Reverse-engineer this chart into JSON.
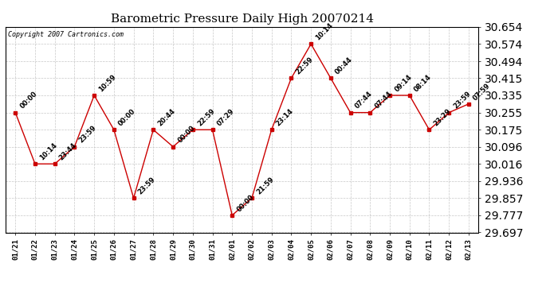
{
  "title": "Barometric Pressure Daily High 20070214",
  "copyright": "Copyright 2007 Cartronics.com",
  "x_labels": [
    "01/21",
    "01/22",
    "01/23",
    "01/24",
    "01/25",
    "01/26",
    "01/27",
    "01/28",
    "01/29",
    "01/30",
    "01/31",
    "02/01",
    "02/02",
    "02/03",
    "02/04",
    "02/05",
    "02/06",
    "02/07",
    "02/08",
    "02/09",
    "02/10",
    "02/11",
    "02/12",
    "02/13"
  ],
  "y_values": [
    30.255,
    30.016,
    30.016,
    30.096,
    30.335,
    30.175,
    29.857,
    30.175,
    30.096,
    30.175,
    30.175,
    29.777,
    29.857,
    30.175,
    30.415,
    30.574,
    30.415,
    30.255,
    30.255,
    30.335,
    30.335,
    30.175,
    30.255,
    30.295
  ],
  "time_labels": [
    "00:00",
    "10:14",
    "23:44",
    "23:59",
    "10:59",
    "00:00",
    "23:59",
    "20:44",
    "00:00",
    "22:59",
    "07:29",
    "00:00",
    "21:59",
    "23:14",
    "22:59",
    "10:14",
    "00:44",
    "07:44",
    "07:44",
    "09:14",
    "08:14",
    "23:29",
    "23:59",
    "07:59"
  ],
  "y_min": 29.697,
  "y_max": 30.654,
  "y_ticks": [
    29.697,
    29.777,
    29.857,
    29.936,
    30.016,
    30.096,
    30.175,
    30.255,
    30.335,
    30.415,
    30.494,
    30.574,
    30.654
  ],
  "line_color": "#cc0000",
  "marker_color": "#cc0000",
  "bg_color": "#ffffff",
  "grid_color": "#c8c8c8",
  "title_fontsize": 11,
  "annotation_fontsize": 6,
  "tick_fontsize": 6.5,
  "copyright_fontsize": 6
}
